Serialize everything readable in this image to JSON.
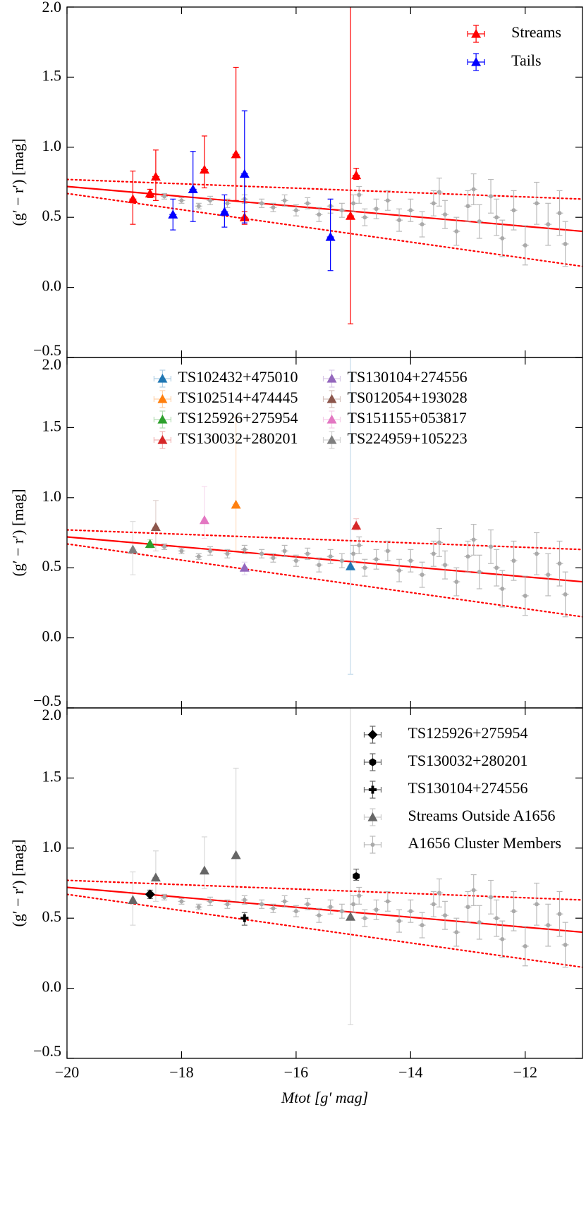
{
  "chart_data": [
    {
      "type": "scatter",
      "ylabel": "(g′ − r′) [mag]",
      "xlim": [
        -20,
        -11
      ],
      "ylim": [
        -0.5,
        2.0
      ],
      "xticks": [
        -20,
        -18,
        -16,
        -14,
        -12
      ],
      "yticks": [
        {
          "value": -0.5,
          "label": "−0.5"
        },
        {
          "value": 0,
          "label": "0.0"
        },
        {
          "value": 0.5,
          "label": "0.5"
        },
        {
          "value": 1,
          "label": "1.0"
        },
        {
          "value": 1.5,
          "label": "1.5"
        },
        {
          "value": 2,
          "label": "2.0"
        }
      ],
      "legend": "upper right",
      "legend_ncol": 1,
      "fit_lines": [
        {
          "x": [
            -20,
            -11
          ],
          "values": [
            0.72,
            0.4
          ],
          "color": "#ff0000",
          "style": "solid"
        },
        {
          "x": [
            -20,
            -11
          ],
          "values": [
            0.77,
            0.63
          ],
          "color": "#ff0000",
          "style": "dotted"
        },
        {
          "x": [
            -20,
            -11
          ],
          "values": [
            0.67,
            0.15
          ],
          "color": "#ff0000",
          "style": "dotted"
        }
      ],
      "series": [
        {
          "color": "#aaaaaa",
          "marker": "point",
          "errorbar_alpha": 0.8,
          "x": [
            -18.3,
            -18.0,
            -17.7,
            -17.5,
            -17.2,
            -16.9,
            -16.6,
            -16.4,
            -16.2,
            -16.0,
            -15.8,
            -15.6,
            -15.4,
            -15.2,
            -15.0,
            -14.9,
            -14.8,
            -14.6,
            -14.4,
            -14.2,
            -14.0,
            -13.8,
            -13.6,
            -13.5,
            -13.4,
            -13.2,
            -13.0,
            -12.9,
            -12.8,
            -12.6,
            -12.5,
            -12.4,
            -12.2,
            -12.0,
            -11.8,
            -11.6,
            -11.4,
            -11.3
          ],
          "values": [
            0.65,
            0.62,
            0.58,
            0.62,
            0.6,
            0.63,
            0.6,
            0.57,
            0.62,
            0.55,
            0.6,
            0.52,
            0.58,
            0.55,
            0.6,
            0.66,
            0.5,
            0.56,
            0.62,
            0.48,
            0.55,
            0.45,
            0.6,
            0.68,
            0.52,
            0.4,
            0.58,
            0.7,
            0.47,
            0.65,
            0.5,
            0.35,
            0.55,
            0.3,
            0.6,
            0.45,
            0.53,
            0.31
          ],
          "yerr": [
            0.02,
            0.02,
            0.02,
            0.03,
            0.03,
            0.03,
            0.03,
            0.03,
            0.04,
            0.04,
            0.04,
            0.05,
            0.05,
            0.05,
            0.06,
            0.06,
            0.06,
            0.07,
            0.07,
            0.08,
            0.08,
            0.09,
            0.09,
            0.1,
            0.1,
            0.1,
            0.11,
            0.11,
            0.12,
            0.12,
            0.13,
            0.13,
            0.14,
            0.14,
            0.15,
            0.15,
            0.16,
            0.16
          ]
        },
        {
          "name": "Streams",
          "color": "#ff0000",
          "marker": "triangle",
          "errorbar_alpha": 1,
          "x": [
            -18.85,
            -18.55,
            -18.45,
            -17.6,
            -17.05,
            -16.9,
            -15.05,
            -14.95
          ],
          "values": [
            0.63,
            0.67,
            0.79,
            0.84,
            0.95,
            0.5,
            0.51,
            0.8
          ],
          "yerr_low": [
            0.18,
            0.03,
            0.17,
            0.13,
            0.33,
            0.05,
            0.77,
            0.03
          ],
          "yerr_high": [
            0.2,
            0.03,
            0.19,
            0.24,
            0.62,
            0.04,
            1.6,
            0.05
          ]
        },
        {
          "name": "Tails",
          "color": "#0000ff",
          "marker": "triangle",
          "errorbar_alpha": 1,
          "x": [
            -18.15,
            -17.8,
            -17.25,
            -16.9,
            -15.4
          ],
          "values": [
            0.52,
            0.7,
            0.54,
            0.81,
            0.36
          ],
          "yerr_low": [
            0.11,
            0.23,
            0.11,
            0.35,
            0.24
          ],
          "yerr_high": [
            0.11,
            0.27,
            0.12,
            0.45,
            0.27
          ]
        }
      ]
    },
    {
      "type": "scatter",
      "ylabel": "(g′ − r′) [mag]",
      "xlim": [
        -20,
        -11
      ],
      "ylim": [
        -0.5,
        2.0
      ],
      "xticks": [
        -20,
        -18,
        -16,
        -14,
        -12
      ],
      "yticks": [
        {
          "value": -0.5,
          "label": "−0.5"
        },
        {
          "value": 0,
          "label": "0.0"
        },
        {
          "value": 0.5,
          "label": "0.5"
        },
        {
          "value": 1,
          "label": "1.0"
        },
        {
          "value": 1.5,
          "label": "1.5"
        },
        {
          "value": 2,
          "label": "2.0"
        }
      ],
      "legend": "upper center",
      "legend_ncol": 2,
      "fit_lines": [
        {
          "x": [
            -20,
            -11
          ],
          "values": [
            0.72,
            0.4
          ],
          "color": "#ff0000",
          "style": "solid"
        },
        {
          "x": [
            -20,
            -11
          ],
          "values": [
            0.77,
            0.63
          ],
          "color": "#ff0000",
          "style": "dotted"
        },
        {
          "x": [
            -20,
            -11
          ],
          "values": [
            0.67,
            0.15
          ],
          "color": "#ff0000",
          "style": "dotted"
        }
      ],
      "series": [
        {
          "color": "#aaaaaa",
          "marker": "point",
          "errorbar_alpha": 0.8,
          "x": [
            -18.3,
            -18.0,
            -17.7,
            -17.5,
            -17.2,
            -16.9,
            -16.6,
            -16.4,
            -16.2,
            -16.0,
            -15.8,
            -15.6,
            -15.4,
            -15.2,
            -15.0,
            -14.9,
            -14.8,
            -14.6,
            -14.4,
            -14.2,
            -14.0,
            -13.8,
            -13.6,
            -13.5,
            -13.4,
            -13.2,
            -13.0,
            -12.9,
            -12.8,
            -12.6,
            -12.5,
            -12.4,
            -12.2,
            -12.0,
            -11.8,
            -11.6,
            -11.4,
            -11.3
          ],
          "values": [
            0.65,
            0.62,
            0.58,
            0.62,
            0.6,
            0.63,
            0.6,
            0.57,
            0.62,
            0.55,
            0.6,
            0.52,
            0.58,
            0.55,
            0.6,
            0.66,
            0.5,
            0.56,
            0.62,
            0.48,
            0.55,
            0.45,
            0.6,
            0.68,
            0.52,
            0.4,
            0.58,
            0.7,
            0.47,
            0.65,
            0.5,
            0.35,
            0.55,
            0.3,
            0.6,
            0.45,
            0.53,
            0.31
          ],
          "yerr": [
            0.02,
            0.02,
            0.02,
            0.03,
            0.03,
            0.03,
            0.03,
            0.03,
            0.04,
            0.04,
            0.04,
            0.05,
            0.05,
            0.05,
            0.06,
            0.06,
            0.06,
            0.07,
            0.07,
            0.08,
            0.08,
            0.09,
            0.09,
            0.1,
            0.1,
            0.1,
            0.11,
            0.11,
            0.12,
            0.12,
            0.13,
            0.13,
            0.14,
            0.14,
            0.15,
            0.15,
            0.16,
            0.16
          ]
        },
        {
          "name": "TS102432+475010",
          "color": "#1f77b4",
          "marker": "triangle",
          "errorbar_alpha": 0.25,
          "x": [
            -15.05
          ],
          "values": [
            0.51
          ],
          "yerr_low": [
            0.77
          ],
          "yerr_high": [
            1.6
          ]
        },
        {
          "name": "TS102514+474445",
          "color": "#ff7f0e",
          "marker": "triangle",
          "errorbar_alpha": 0.25,
          "x": [
            -17.05
          ],
          "values": [
            0.95
          ],
          "yerr_low": [
            0.33
          ],
          "yerr_high": [
            0.62
          ]
        },
        {
          "name": "TS125926+275954",
          "color": "#2ca02c",
          "marker": "triangle",
          "errorbar_alpha": 0.25,
          "x": [
            -18.55
          ],
          "values": [
            0.67
          ],
          "yerr_low": [
            0.03
          ],
          "yerr_high": [
            0.03
          ]
        },
        {
          "name": "TS130032+280201",
          "color": "#d62728",
          "marker": "triangle",
          "errorbar_alpha": 0.25,
          "x": [
            -14.95
          ],
          "values": [
            0.8
          ],
          "yerr_low": [
            0.03
          ],
          "yerr_high": [
            0.05
          ]
        },
        {
          "name": "TS130104+274556",
          "color": "#9467bd",
          "marker": "triangle",
          "errorbar_alpha": 0.25,
          "x": [
            -16.9
          ],
          "values": [
            0.5
          ],
          "yerr_low": [
            0.05
          ],
          "yerr_high": [
            0.04
          ]
        },
        {
          "name": "TS012054+193028",
          "color": "#8c564b",
          "marker": "triangle",
          "errorbar_alpha": 0.25,
          "x": [
            -18.45
          ],
          "values": [
            0.79
          ],
          "yerr_low": [
            0.17
          ],
          "yerr_high": [
            0.19
          ]
        },
        {
          "name": "TS151155+053817",
          "color": "#e377c2",
          "marker": "triangle",
          "errorbar_alpha": 0.25,
          "x": [
            -17.6
          ],
          "values": [
            0.84
          ],
          "yerr_low": [
            0.13
          ],
          "yerr_high": [
            0.24
          ]
        },
        {
          "name": "TS224959+105223",
          "color": "#7f7f7f",
          "marker": "triangle",
          "errorbar_alpha": 0.25,
          "x": [
            -18.85
          ],
          "values": [
            0.63
          ],
          "yerr_low": [
            0.18
          ],
          "yerr_high": [
            0.2
          ]
        }
      ]
    },
    {
      "type": "scatter",
      "ylabel": "(g′ − r′) [mag]",
      "xlabel": "Mtot [g′ mag]",
      "xlim": [
        -20,
        -11
      ],
      "ylim": [
        -0.5,
        2.0
      ],
      "xticks": [
        {
          "value": -20,
          "label": "−20"
        },
        {
          "value": -18,
          "label": "−18"
        },
        {
          "value": -16,
          "label": "−16"
        },
        {
          "value": -14,
          "label": "−14"
        },
        {
          "value": -12,
          "label": "−12"
        }
      ],
      "yticks": [
        {
          "value": -0.5,
          "label": "−0.5"
        },
        {
          "value": 0,
          "label": "0.0"
        },
        {
          "value": 0.5,
          "label": "0.5"
        },
        {
          "value": 1,
          "label": "1.0"
        },
        {
          "value": 1.5,
          "label": "1.5"
        },
        {
          "value": 2,
          "label": "2.0"
        }
      ],
      "legend": "upper right",
      "legend_ncol": 1,
      "fit_lines": [
        {
          "x": [
            -20,
            -11
          ],
          "values": [
            0.72,
            0.4
          ],
          "color": "#ff0000",
          "style": "solid"
        },
        {
          "x": [
            -20,
            -11
          ],
          "values": [
            0.77,
            0.63
          ],
          "color": "#ff0000",
          "style": "dotted"
        },
        {
          "x": [
            -20,
            -11
          ],
          "values": [
            0.67,
            0.15
          ],
          "color": "#ff0000",
          "style": "dotted"
        }
      ],
      "series": [
        {
          "name": "TS125926+275954",
          "color": "#000000",
          "marker": "diamond",
          "errorbar_alpha": 0.6,
          "x": [
            -18.55
          ],
          "values": [
            0.67
          ],
          "yerr_low": [
            0.03
          ],
          "yerr_high": [
            0.03
          ]
        },
        {
          "name": "TS130032+280201",
          "color": "#000000",
          "marker": "hexagon",
          "errorbar_alpha": 0.6,
          "x": [
            -14.95
          ],
          "values": [
            0.8
          ],
          "yerr_low": [
            0.03
          ],
          "yerr_high": [
            0.05
          ]
        },
        {
          "name": "TS130104+274556",
          "color": "#000000",
          "marker": "plus",
          "errorbar_alpha": 0.6,
          "x": [
            -16.9
          ],
          "values": [
            0.5
          ],
          "yerr_low": [
            0.05
          ],
          "yerr_high": [
            0.04
          ]
        },
        {
          "name": "Streams Outside A1656",
          "color": "#666666",
          "marker": "triangle",
          "errorbar_alpha": 0.25,
          "x": [
            -18.85,
            -18.45,
            -17.6,
            -17.05,
            -15.05
          ],
          "values": [
            0.63,
            0.79,
            0.84,
            0.95,
            0.51
          ],
          "yerr_low": [
            0.18,
            0.17,
            0.13,
            0.33,
            0.77
          ],
          "yerr_high": [
            0.2,
            0.19,
            0.24,
            0.62,
            1.6
          ]
        },
        {
          "name": "A1656 Cluster Members",
          "color": "#aaaaaa",
          "marker": "point",
          "errorbar_alpha": 0.8,
          "x": [
            -18.3,
            -18.0,
            -17.7,
            -17.5,
            -17.2,
            -16.9,
            -16.6,
            -16.4,
            -16.2,
            -16.0,
            -15.8,
            -15.6,
            -15.4,
            -15.2,
            -15.0,
            -14.9,
            -14.8,
            -14.6,
            -14.4,
            -14.2,
            -14.0,
            -13.8,
            -13.6,
            -13.5,
            -13.4,
            -13.2,
            -13.0,
            -12.9,
            -12.8,
            -12.6,
            -12.5,
            -12.4,
            -12.2,
            -12.0,
            -11.8,
            -11.6,
            -11.4,
            -11.3
          ],
          "values": [
            0.65,
            0.62,
            0.58,
            0.62,
            0.6,
            0.63,
            0.6,
            0.57,
            0.62,
            0.55,
            0.6,
            0.52,
            0.58,
            0.55,
            0.6,
            0.66,
            0.5,
            0.56,
            0.62,
            0.48,
            0.55,
            0.45,
            0.6,
            0.68,
            0.52,
            0.4,
            0.58,
            0.7,
            0.47,
            0.65,
            0.5,
            0.35,
            0.55,
            0.3,
            0.6,
            0.45,
            0.53,
            0.31
          ],
          "yerr": [
            0.02,
            0.02,
            0.02,
            0.03,
            0.03,
            0.03,
            0.03,
            0.03,
            0.04,
            0.04,
            0.04,
            0.05,
            0.05,
            0.05,
            0.06,
            0.06,
            0.06,
            0.07,
            0.07,
            0.08,
            0.08,
            0.09,
            0.09,
            0.1,
            0.1,
            0.1,
            0.11,
            0.11,
            0.12,
            0.12,
            0.13,
            0.13,
            0.14,
            0.14,
            0.15,
            0.15,
            0.16,
            0.16
          ]
        }
      ]
    }
  ]
}
